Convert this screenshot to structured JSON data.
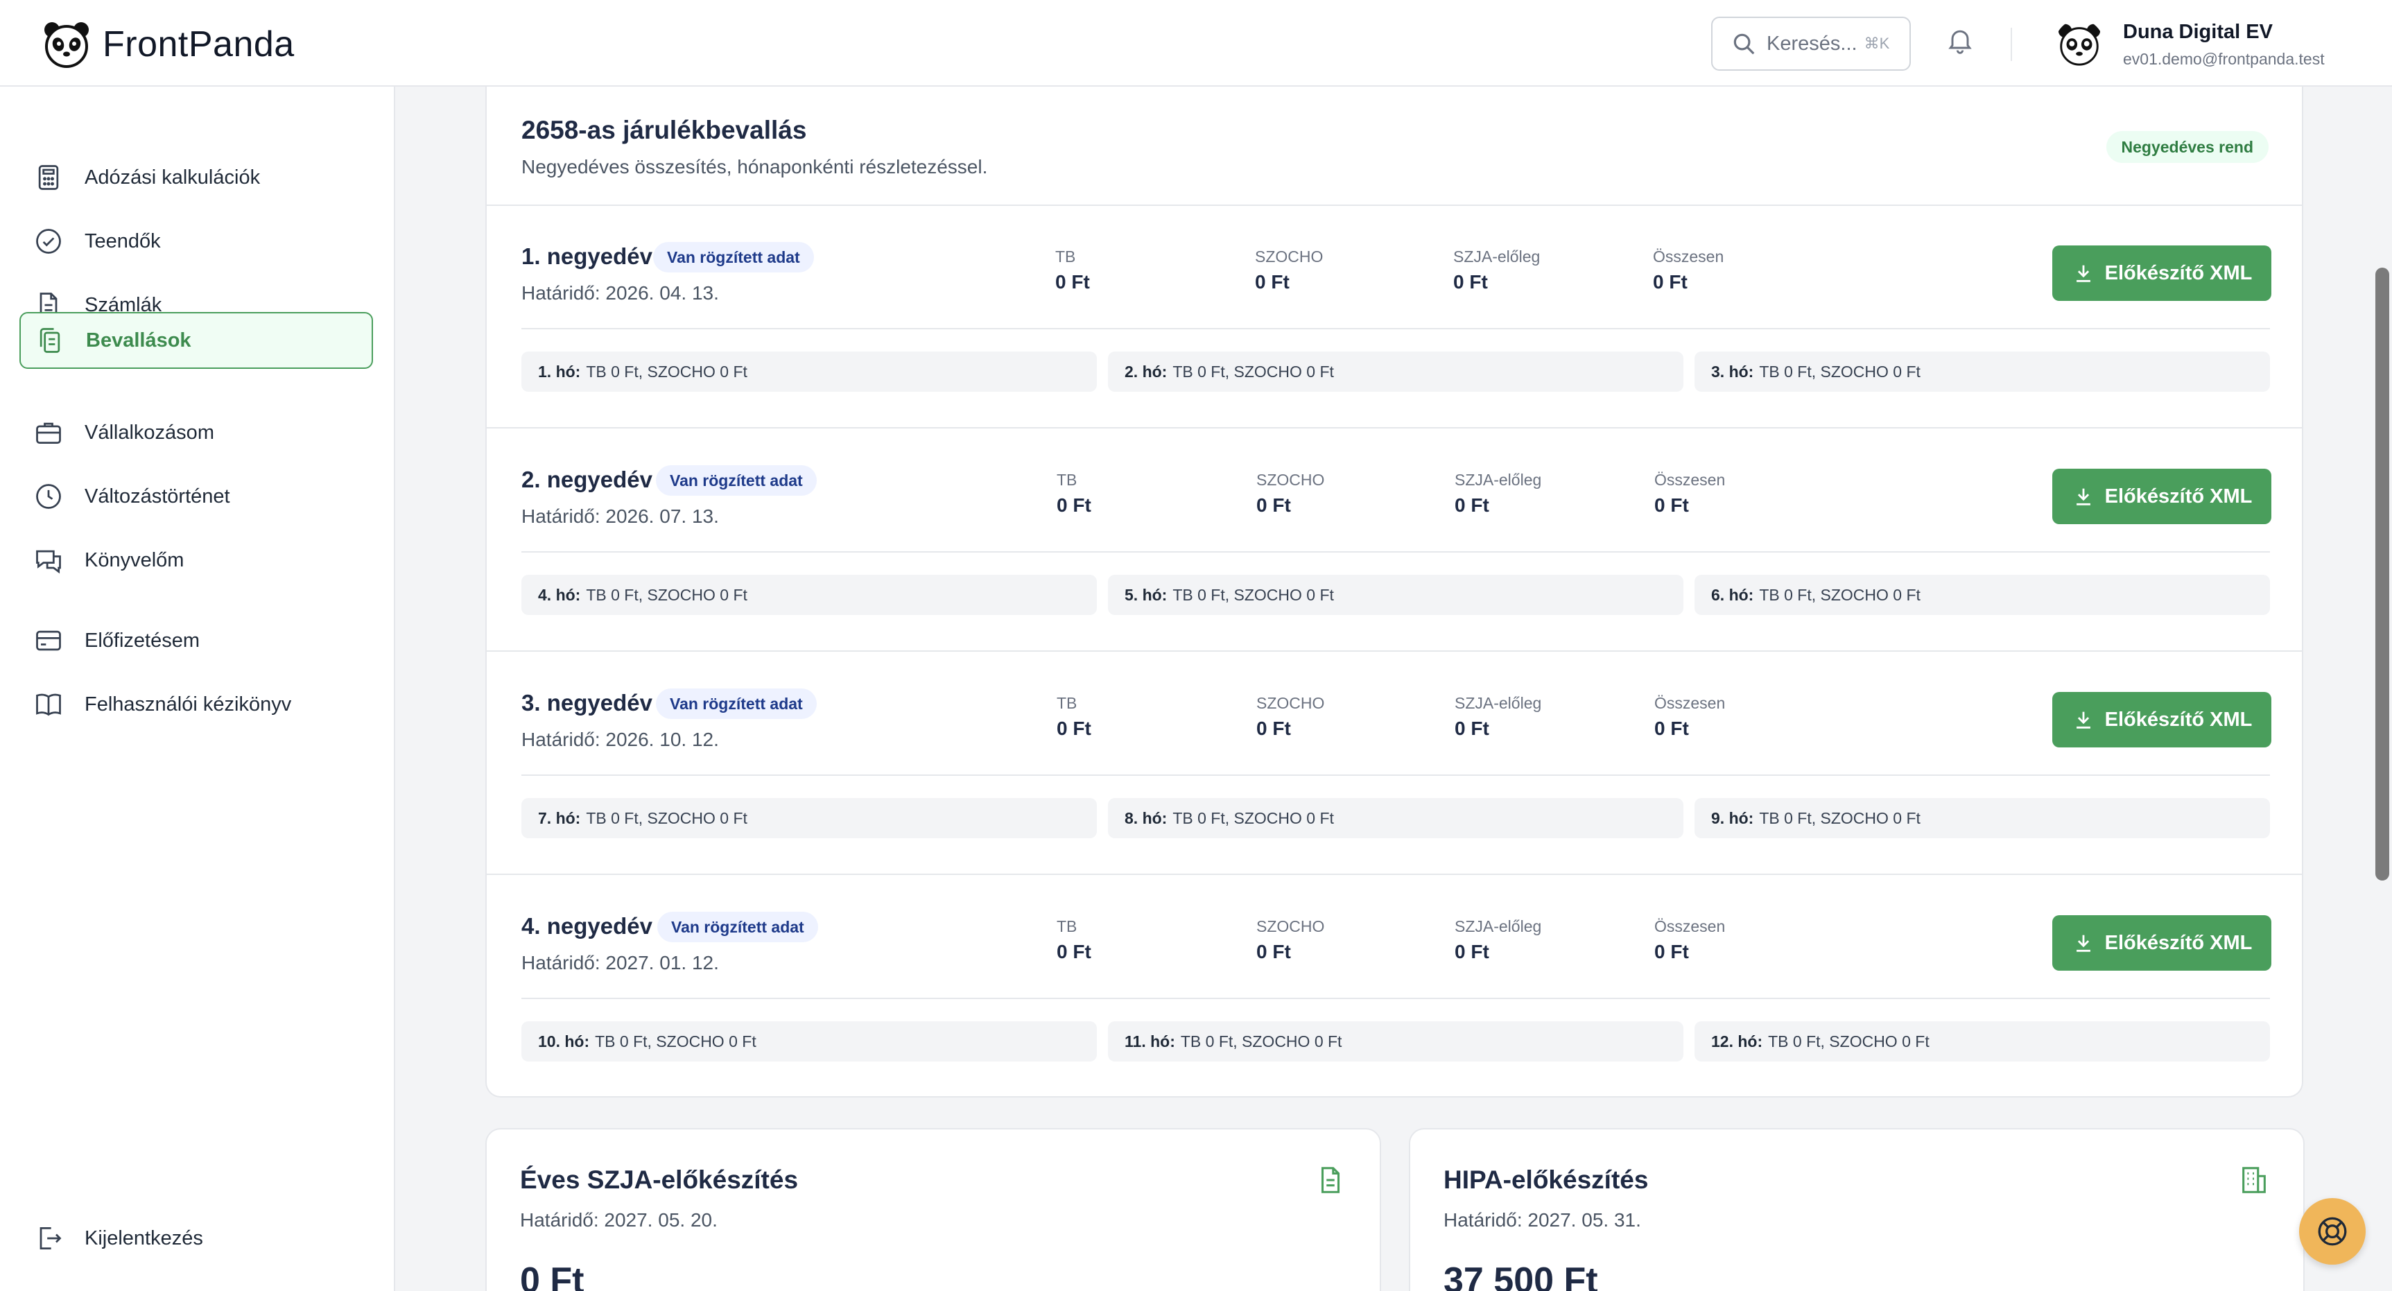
{
  "brand": {
    "name": "FrontPanda"
  },
  "header": {
    "search_placeholder": "Keresés...",
    "search_shortcut": "⌘K",
    "user_name": "Duna Digital EV",
    "user_email": "ev01.demo@frontpanda.test"
  },
  "sidebar": {
    "items": [
      {
        "label": "Adózási kalkulációk",
        "icon": "calculator-icon"
      },
      {
        "label": "Teendők",
        "icon": "check-circle-icon"
      },
      {
        "label": "Számlák",
        "icon": "document-icon"
      },
      {
        "label": "Bevallások",
        "icon": "clipboard-copy-icon",
        "active": true
      },
      {
        "label": "Vállalkozásom",
        "icon": "briefcase-icon"
      },
      {
        "label": "Változástörténet",
        "icon": "clock-icon"
      },
      {
        "label": "Könyvelőm",
        "icon": "chat-icon"
      },
      {
        "label": "Előfizetésem",
        "icon": "credit-card-icon"
      },
      {
        "label": "Felhasználói kézikönyv",
        "icon": "book-icon"
      }
    ],
    "logout": "Kijelentkezés"
  },
  "declaration": {
    "title": "2658-as járulékbevallás",
    "subtitle": "Negyedéves összesítés, hónaponkénti részletezéssel.",
    "badge": "Negyedéves rend",
    "stat_labels": {
      "tb": "TB",
      "szocho": "SZOCHO",
      "szja": "SZJA-előleg",
      "total": "Összesen"
    },
    "button_label": "Előkészítő XML",
    "quarters": [
      {
        "title": "1. negyedév",
        "badge": "Van rögzített adat",
        "deadline": "Határidő: 2026. 04. 13.",
        "tb": "0 Ft",
        "szocho": "0 Ft",
        "szja": "0 Ft",
        "total": "0 Ft",
        "months": [
          {
            "label": "1. hó:",
            "text": "TB 0 Ft, SZOCHO 0 Ft"
          },
          {
            "label": "2. hó:",
            "text": "TB 0 Ft, SZOCHO 0 Ft"
          },
          {
            "label": "3. hó:",
            "text": "TB 0 Ft, SZOCHO 0 Ft"
          }
        ]
      },
      {
        "title": "2. negyedév",
        "badge": "Van rögzített adat",
        "deadline": "Határidő: 2026. 07. 13.",
        "tb": "0 Ft",
        "szocho": "0 Ft",
        "szja": "0 Ft",
        "total": "0 Ft",
        "months": [
          {
            "label": "4. hó:",
            "text": "TB 0 Ft, SZOCHO 0 Ft"
          },
          {
            "label": "5. hó:",
            "text": "TB 0 Ft, SZOCHO 0 Ft"
          },
          {
            "label": "6. hó:",
            "text": "TB 0 Ft, SZOCHO 0 Ft"
          }
        ]
      },
      {
        "title": "3. negyedév",
        "badge": "Van rögzített adat",
        "deadline": "Határidő: 2026. 10. 12.",
        "tb": "0 Ft",
        "szocho": "0 Ft",
        "szja": "0 Ft",
        "total": "0 Ft",
        "months": [
          {
            "label": "7. hó:",
            "text": "TB 0 Ft, SZOCHO 0 Ft"
          },
          {
            "label": "8. hó:",
            "text": "TB 0 Ft, SZOCHO 0 Ft"
          },
          {
            "label": "9. hó:",
            "text": "TB 0 Ft, SZOCHO 0 Ft"
          }
        ]
      },
      {
        "title": "4. negyedév",
        "badge": "Van rögzített adat",
        "deadline": "Határidő: 2027. 01. 12.",
        "tb": "0 Ft",
        "szocho": "0 Ft",
        "szja": "0 Ft",
        "total": "0 Ft",
        "months": [
          {
            "label": "10. hó:",
            "text": "TB 0 Ft, SZOCHO 0 Ft"
          },
          {
            "label": "11. hó:",
            "text": "TB 0 Ft, SZOCHO 0 Ft"
          },
          {
            "label": "12. hó:",
            "text": "TB 0 Ft, SZOCHO 0 Ft"
          }
        ]
      }
    ]
  },
  "szja_card": {
    "title": "Éves SZJA-előkészítés",
    "deadline": "Határidő: 2027. 05. 20.",
    "amount": "0 Ft",
    "icon": "document-icon"
  },
  "hipa_card": {
    "title": "HIPA-előkészítés",
    "deadline": "Határidő: 2027. 05. 31.",
    "amount": "37 500 Ft",
    "icon": "building-icon"
  },
  "colors": {
    "brand_green": "#4a9e5c",
    "badge_blue_bg": "#eef2ff",
    "fab": "#f0b65a"
  }
}
